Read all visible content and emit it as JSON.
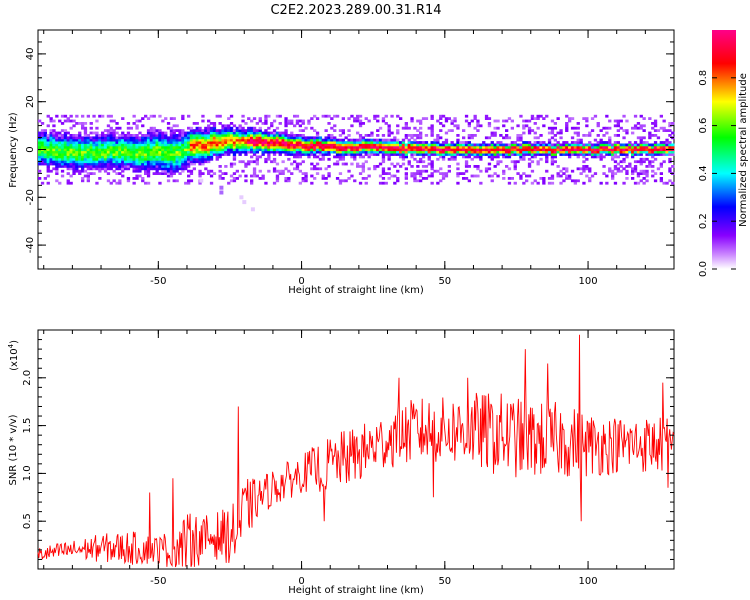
{
  "page_title": "C2E2.2023.289.00.31.R14",
  "chart_data": [
    {
      "type": "heatmap",
      "title": "C2E2.2023.289.00.31.R14",
      "xlabel": "Height of straight line (km)",
      "ylabel": "Frequency (Hz)",
      "xlim": [
        -92,
        130
      ],
      "ylim": [
        -50,
        50
      ],
      "xticks": [
        -50,
        0,
        50,
        100
      ],
      "yticks": [
        -40,
        -20,
        0,
        20,
        40
      ],
      "colorbar": {
        "label": "Normalized spectral amplitude",
        "range": [
          0.0,
          1.0
        ],
        "ticks": [
          "0.0",
          "0.2",
          "0.4",
          "0.6",
          "0.8"
        ],
        "colors": [
          "#ffffff",
          "#8800ff",
          "#0000ff",
          "#00ffff",
          "#00ff00",
          "#ffff00",
          "#ff0000",
          "#ff00aa"
        ]
      },
      "ridge": {
        "x": [
          -92,
          -80,
          -60,
          -50,
          -45,
          -40,
          -30,
          -20,
          -10,
          0,
          20,
          50,
          80,
          100,
          130
        ],
        "center_freq": [
          0,
          -1,
          -1,
          -1,
          -2,
          1,
          3,
          4,
          3,
          2,
          1,
          0,
          0,
          0,
          0
        ],
        "halfwidth": [
          6,
          6,
          6,
          7,
          7,
          6,
          5,
          4,
          3.5,
          3,
          2.5,
          2.2,
          2,
          2,
          2
        ]
      },
      "outliers": [
        {
          "x": -28,
          "y": -16
        },
        {
          "x": -28,
          "y": -18
        },
        {
          "x": -21,
          "y": -20
        },
        {
          "x": -20,
          "y": -22
        },
        {
          "x": -17,
          "y": -25
        },
        {
          "x": -35,
          "y": -13
        }
      ]
    },
    {
      "type": "line",
      "xlabel": "Height of straight line (km)",
      "ylabel": "SNR (10 * v/v)",
      "y_multiplier": "(x10",
      "y_multiplier_exp": "4",
      "y_multiplier_close": ")",
      "xlim": [
        -92,
        130
      ],
      "ylim": [
        0,
        2.5
      ],
      "xticks": [
        -50,
        0,
        50,
        100
      ],
      "yticks": [
        "0.5",
        "1.0",
        "1.5",
        "2.0"
      ],
      "series": [
        {
          "color": "#ff0000",
          "x": [
            -92,
            -80,
            -70,
            -60,
            -50,
            -45,
            -42,
            -38,
            -35,
            -30,
            -25,
            -22,
            -20,
            -15,
            -10,
            -5,
            0,
            5,
            10,
            15,
            20,
            25,
            30,
            40,
            50,
            60,
            70,
            80,
            90,
            100,
            110,
            120,
            130
          ],
          "y": [
            0.15,
            0.2,
            0.22,
            0.22,
            0.2,
            0.2,
            0.25,
            0.3,
            0.3,
            0.35,
            0.35,
            0.4,
            0.6,
            0.75,
            0.85,
            0.92,
            1.0,
            1.05,
            1.1,
            1.15,
            1.2,
            1.28,
            1.35,
            1.45,
            1.45,
            1.45,
            1.4,
            1.35,
            1.35,
            1.3,
            1.3,
            1.3,
            1.3
          ],
          "spread": [
            0.08,
            0.1,
            0.15,
            0.18,
            0.15,
            0.25,
            0.3,
            0.3,
            0.25,
            0.25,
            0.3,
            0.35,
            0.35,
            0.2,
            0.2,
            0.2,
            0.2,
            0.25,
            0.3,
            0.3,
            0.3,
            0.3,
            0.3,
            0.35,
            0.35,
            0.4,
            0.45,
            0.4,
            0.4,
            0.35,
            0.3,
            0.3,
            0.3
          ],
          "spikes": [
            {
              "x": -22,
              "y": 1.7
            },
            {
              "x": -45,
              "y": 0.95
            },
            {
              "x": -53,
              "y": 0.8
            },
            {
              "x": 78,
              "y": 2.3
            },
            {
              "x": 97,
              "y": 2.45
            },
            {
              "x": 97.5,
              "y": 0.5
            },
            {
              "x": 34,
              "y": 2.0
            },
            {
              "x": 58,
              "y": 2.0
            },
            {
              "x": 86,
              "y": 2.15
            },
            {
              "x": 126,
              "y": 1.95
            },
            {
              "x": 128,
              "y": 0.85
            },
            {
              "x": 46,
              "y": 0.75
            },
            {
              "x": 8,
              "y": 0.5
            }
          ]
        }
      ]
    }
  ]
}
